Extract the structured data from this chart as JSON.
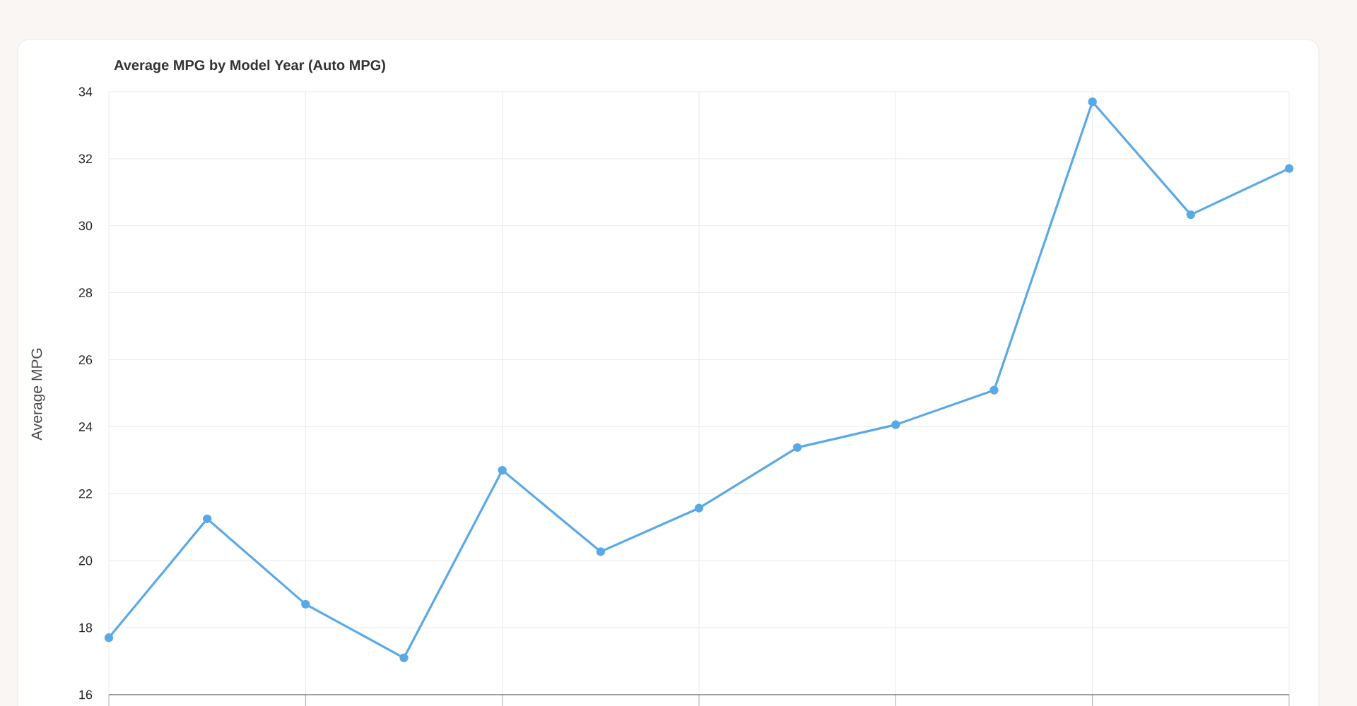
{
  "chart_data": {
    "type": "line",
    "title": "Average MPG by Model Year (Auto MPG)",
    "ylabel": "Average MPG",
    "categories": [
      null,
      null,
      null,
      null,
      null,
      null,
      null,
      null,
      null,
      null,
      null,
      null,
      null
    ],
    "series": [
      {
        "color": "#5aa9e6",
        "values": [
          17.7,
          21.25,
          18.7,
          17.1,
          22.7,
          20.27,
          21.57,
          23.38,
          24.06,
          25.09,
          33.7,
          30.33,
          31.71
        ]
      }
    ],
    "ylim": [
      16,
      34
    ],
    "yticks": [
      16,
      18,
      20,
      22,
      24,
      26,
      28,
      30,
      32,
      34
    ],
    "grid": true,
    "marker": "circle"
  }
}
